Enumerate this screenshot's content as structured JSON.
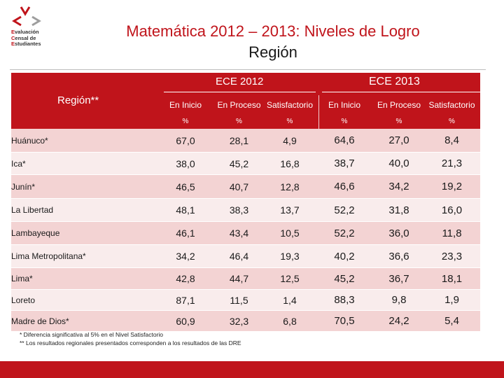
{
  "logo": {
    "lines": [
      {
        "cap": "E",
        "rest": "valuación"
      },
      {
        "cap": "C",
        "rest": "ensal de"
      },
      {
        "cap": "E",
        "rest": "studiantes"
      }
    ],
    "colors": {
      "red": "#c0141b",
      "gray": "#9e9e9e"
    }
  },
  "title": {
    "line1": "Matemática 2012 – 2013: Niveles de Logro",
    "line2": "Región"
  },
  "table": {
    "region_header": "Región**",
    "groups": [
      {
        "label": "ECE 2012"
      },
      {
        "label": "ECE 2013"
      }
    ],
    "subheaders": [
      "En Inicio",
      "En Proceso",
      "Satisfactorio",
      "En Inicio",
      "En Proceso",
      "Satisfactorio"
    ],
    "units": [
      "%",
      "%",
      "%",
      "%",
      "%",
      "%"
    ],
    "rows": [
      {
        "region": "Huánuco*",
        "values": [
          "67,0",
          "28,1",
          "4,9",
          "64,6",
          "27,0",
          "8,4"
        ]
      },
      {
        "region": "Ica*",
        "values": [
          "38,0",
          "45,2",
          "16,8",
          "38,7",
          "40,0",
          "21,3"
        ]
      },
      {
        "region": "Junín*",
        "values": [
          "46,5",
          "40,7",
          "12,8",
          "46,6",
          "34,2",
          "19,2"
        ]
      },
      {
        "region": "La Libertad",
        "values": [
          "48,1",
          "38,3",
          "13,7",
          "52,2",
          "31,8",
          "16,0"
        ]
      },
      {
        "region": "Lambayeque",
        "values": [
          "46,1",
          "43,4",
          "10,5",
          "52,2",
          "36,0",
          "11,8"
        ]
      },
      {
        "region": "Lima Metropolitana*",
        "values": [
          "34,2",
          "46,4",
          "19,3",
          "40,2",
          "36,6",
          "23,3"
        ]
      },
      {
        "region": "Lima*",
        "values": [
          "42,8",
          "44,7",
          "12,5",
          "45,2",
          "36,7",
          "18,1"
        ]
      },
      {
        "region": "Loreto",
        "values": [
          "87,1",
          "11,5",
          "1,4",
          "88,3",
          "9,8",
          "1,9"
        ]
      },
      {
        "region": "Madre de Dios*",
        "values": [
          "60,9",
          "32,3",
          "6,8",
          "70,5",
          "24,2",
          "5,4"
        ]
      }
    ]
  },
  "notes": {
    "n1": "* Diferencia significativa al 5% en el Nivel Satisfactorio",
    "n2": "** Los resultados regionales presentados corresponden a los resultados de las DRE"
  },
  "colors": {
    "header_red": "#c0141b",
    "row_odd": "#f3d3d3",
    "row_even": "#f9ecec"
  }
}
